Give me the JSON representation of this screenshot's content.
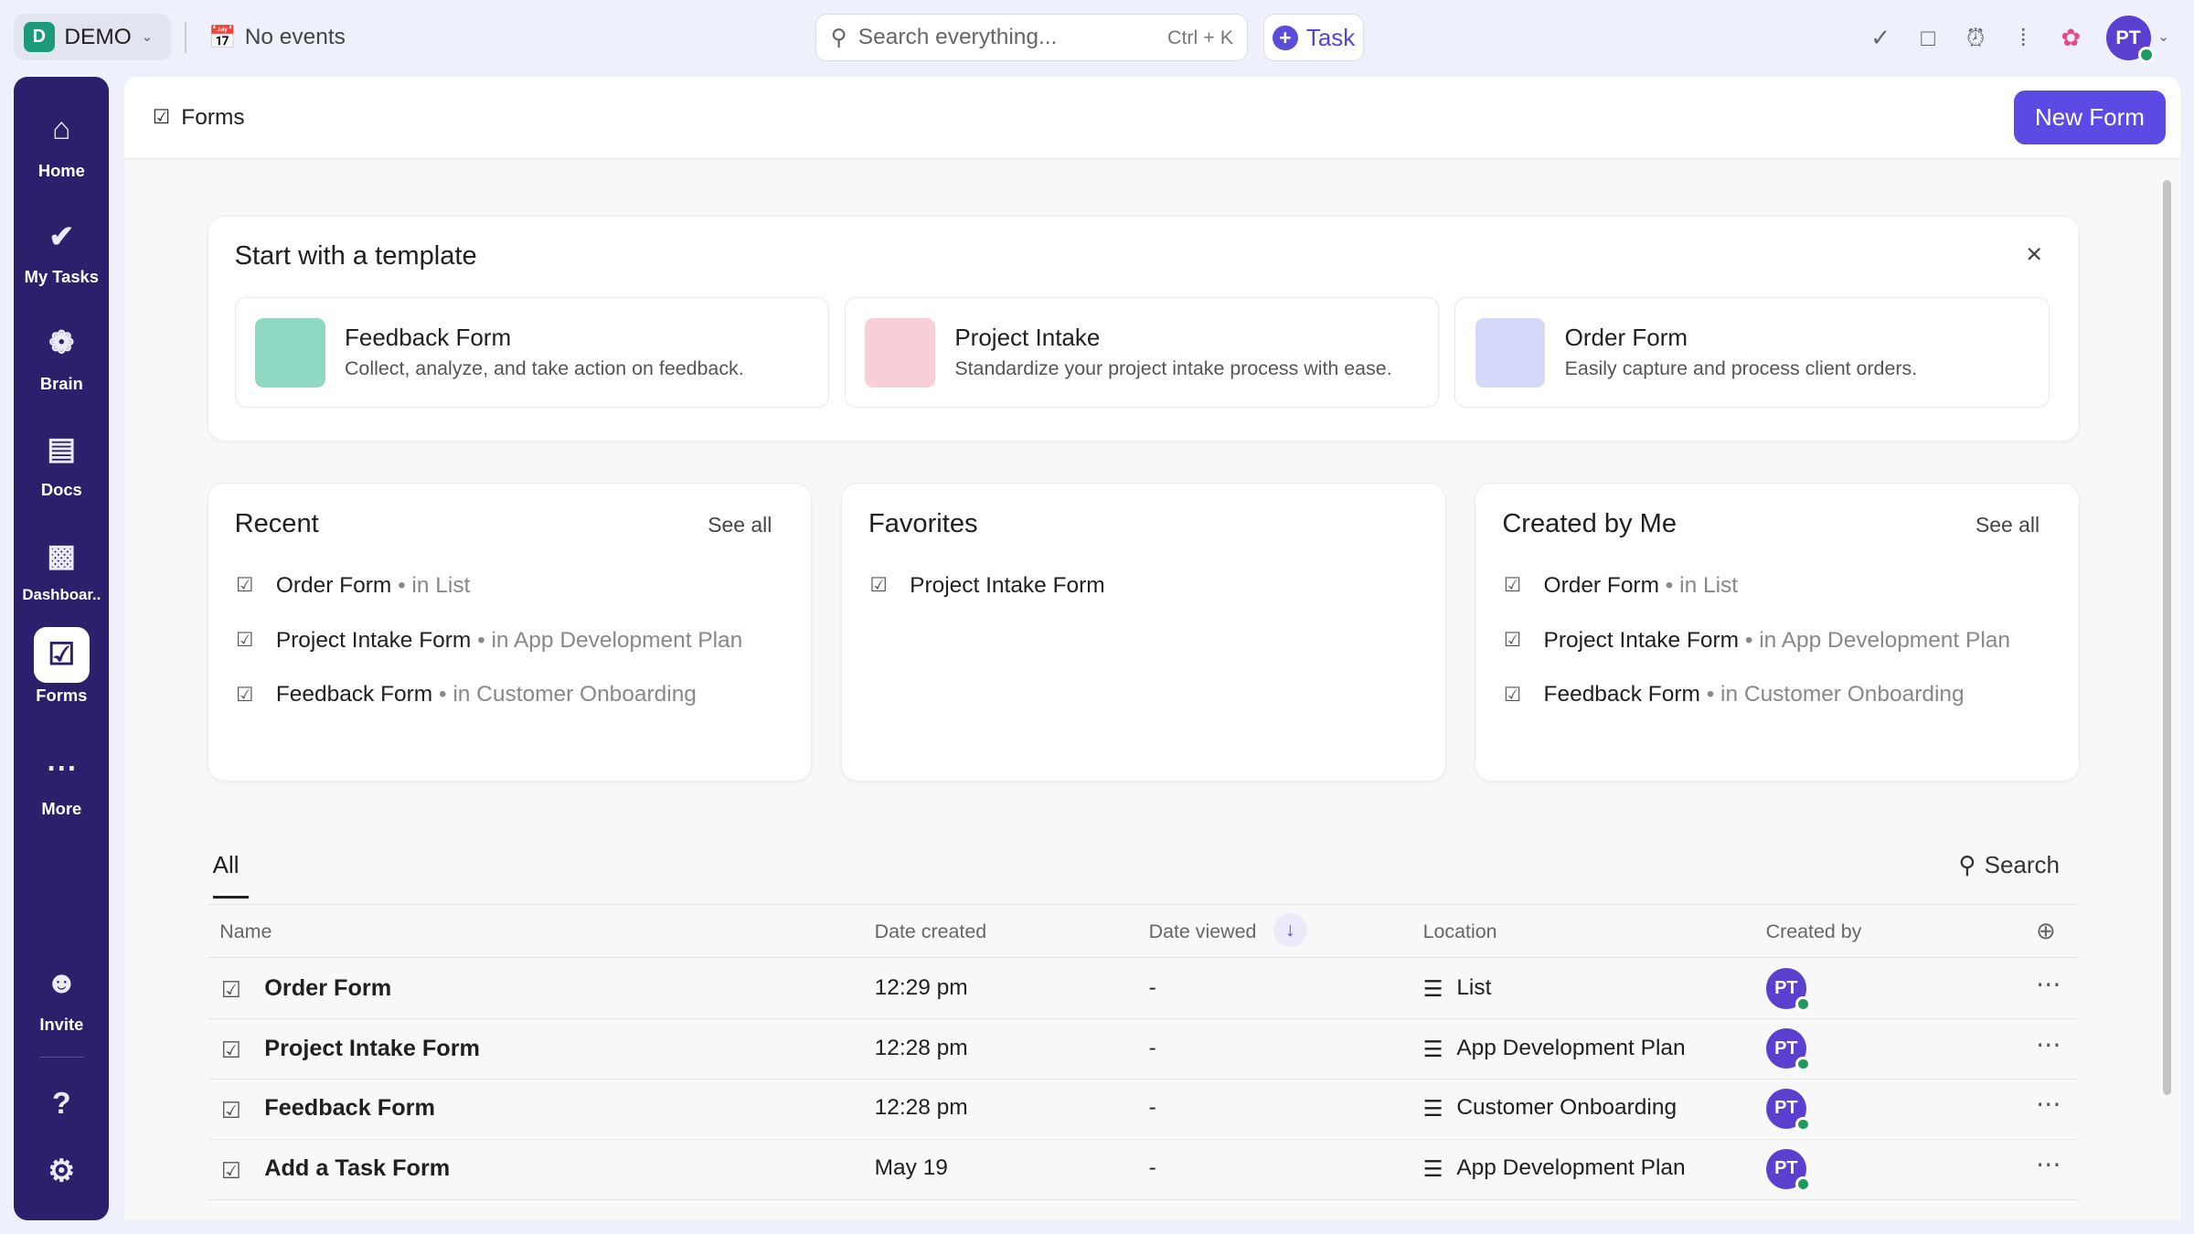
{
  "topbar": {
    "workspace_initial": "D",
    "workspace": "DEMO",
    "events": "No events",
    "search_placeholder": "Search everything...",
    "search_shortcut": "Ctrl + K",
    "task_button": "Task",
    "avatar": "PT"
  },
  "sidebar": {
    "items": [
      {
        "label": "Home",
        "icon": "home-icon"
      },
      {
        "label": "My Tasks",
        "icon": "check-circle-icon"
      },
      {
        "label": "Brain",
        "icon": "brain-icon"
      },
      {
        "label": "Docs",
        "icon": "doc-icon"
      },
      {
        "label": "Dashboar..",
        "icon": "dashboard-icon"
      },
      {
        "label": "Forms",
        "icon": "forms-icon",
        "active": true
      },
      {
        "label": "More",
        "icon": "more-icon"
      }
    ],
    "invite": "Invite"
  },
  "header": {
    "title": "Forms",
    "new_form": "New Form"
  },
  "templates": {
    "title": "Start with a template",
    "items": [
      {
        "name": "Feedback Form",
        "desc": "Collect, analyze, and take action on feedback."
      },
      {
        "name": "Project Intake",
        "desc": "Standardize your project intake process with ease."
      },
      {
        "name": "Order Form",
        "desc": "Easily capture and process client orders."
      }
    ]
  },
  "recent": {
    "title": "Recent",
    "see_all": "See all",
    "items": [
      {
        "name": "Order Form",
        "loc": "• in List"
      },
      {
        "name": "Project Intake Form",
        "loc": "• in App Development Plan"
      },
      {
        "name": "Feedback Form",
        "loc": "• in Customer Onboarding"
      }
    ]
  },
  "favorites": {
    "title": "Favorites",
    "items": [
      {
        "name": "Project Intake Form"
      }
    ]
  },
  "created": {
    "title": "Created by Me",
    "see_all": "See all",
    "items": [
      {
        "name": "Order Form",
        "loc": "• in List"
      },
      {
        "name": "Project Intake Form",
        "loc": "• in App Development Plan"
      },
      {
        "name": "Feedback Form",
        "loc": "• in Customer Onboarding"
      }
    ]
  },
  "table": {
    "tab": "All",
    "search": "Search",
    "headers": {
      "name": "Name",
      "created": "Date created",
      "viewed": "Date viewed",
      "location": "Location",
      "created_by": "Created by"
    },
    "rows": [
      {
        "name": "Order Form",
        "created": "12:29 pm",
        "viewed": "-",
        "location": "List",
        "by": "PT"
      },
      {
        "name": "Project Intake Form",
        "created": "12:28 pm",
        "viewed": "-",
        "location": "App Development Plan",
        "by": "PT"
      },
      {
        "name": "Feedback Form",
        "created": "12:28 pm",
        "viewed": "-",
        "location": "Customer Onboarding",
        "by": "PT"
      },
      {
        "name": "Add a Task Form",
        "created": "May 19",
        "viewed": "-",
        "location": "App Development Plan",
        "by": "PT"
      }
    ]
  },
  "colors": {
    "accent": "#5b4ae4",
    "sidebar": "#2c1f6b",
    "online": "#1f9a5d"
  }
}
